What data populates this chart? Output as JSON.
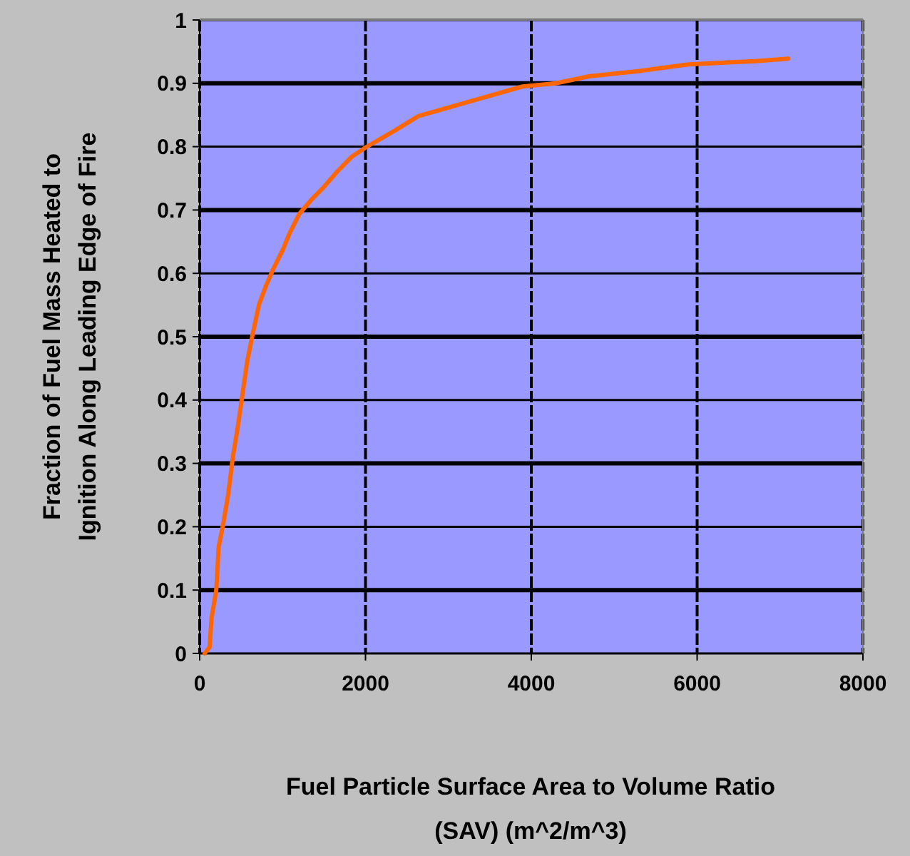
{
  "chart_data": {
    "type": "line",
    "xlabel": "Fuel Particle Surface Area to Volume Ratio\n(SAV) (m^2/m^3)",
    "ylabel": "Fraction of Fuel Mass Heated to\nIgnition Along Leading Edge of Fire",
    "x": [
      60,
      120,
      143,
      200,
      229,
      286,
      344,
      401,
      458,
      515,
      573,
      630,
      716,
      802,
      888,
      1002,
      1087,
      1203,
      1346,
      1489,
      1661,
      1833,
      2005,
      2349,
      2635,
      3036,
      3436,
      3895,
      4296,
      4697,
      5271,
      5900,
      6701,
      7100
    ],
    "series": [
      {
        "color": "#ff6600",
        "values": [
          0,
          0.01,
          0.056,
          0.1,
          0.168,
          0.206,
          0.251,
          0.311,
          0.356,
          0.408,
          0.461,
          0.498,
          0.551,
          0.581,
          0.607,
          0.637,
          0.664,
          0.694,
          0.716,
          0.735,
          0.761,
          0.784,
          0.799,
          0.825,
          0.848,
          0.863,
          0.878,
          0.895,
          0.9,
          0.911,
          0.919,
          0.93,
          0.935,
          0.939
        ]
      }
    ],
    "xlim": [
      0,
      8000
    ],
    "xticks": [
      0,
      2000,
      4000,
      6000,
      8000
    ],
    "ylim": [
      0,
      1
    ],
    "yticks": [
      0,
      0.1,
      0.2,
      0.3,
      0.4,
      0.5,
      0.6,
      0.7,
      0.8,
      0.9,
      1
    ],
    "grid": true,
    "marker": "none",
    "line_style": "solid"
  }
}
